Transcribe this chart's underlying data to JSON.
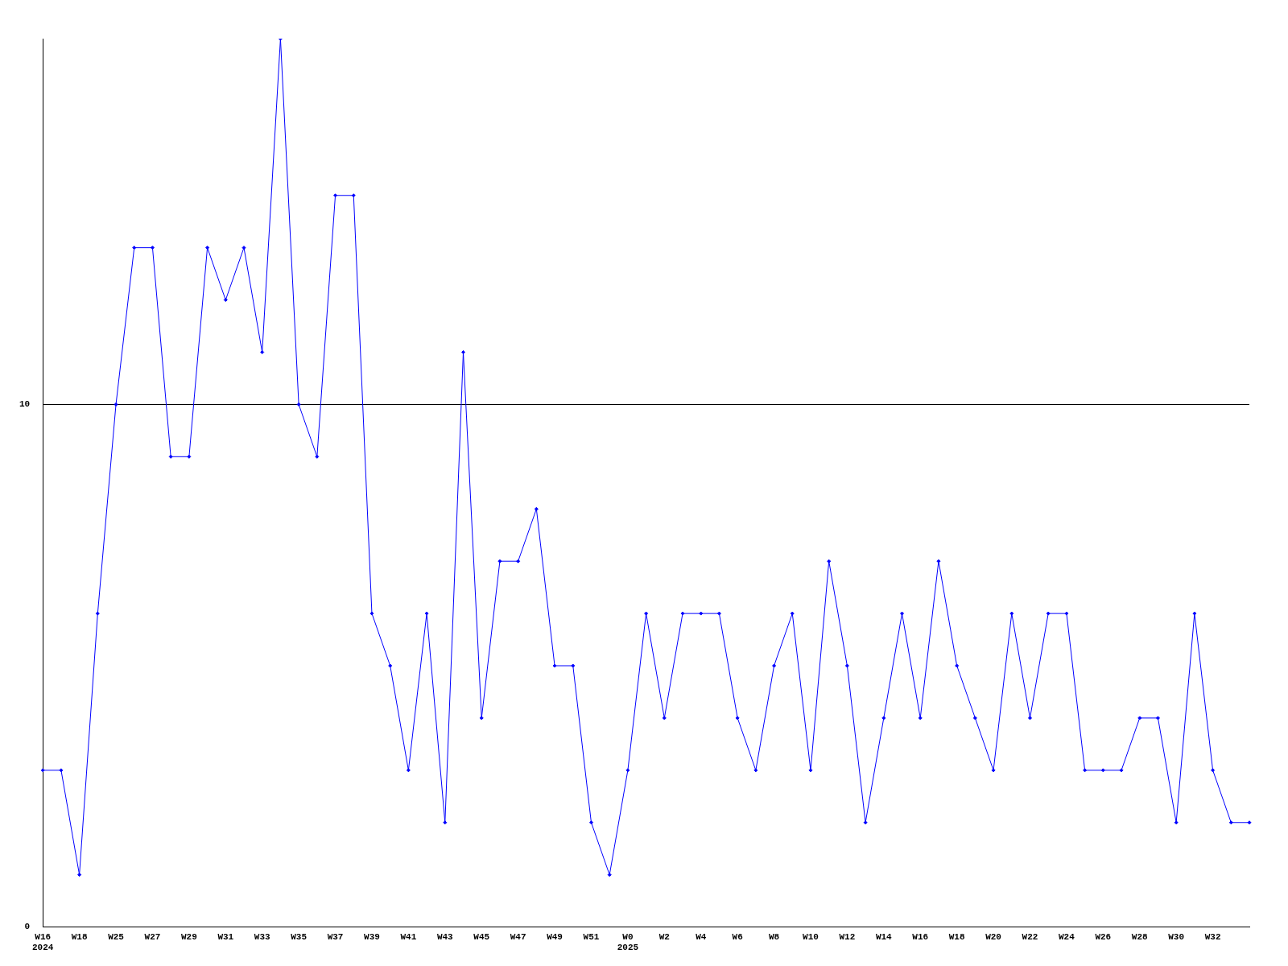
{
  "chart_data": {
    "type": "line",
    "categories": [
      "W16\n2024",
      null,
      "W18",
      null,
      "W25",
      null,
      "W27",
      null,
      "W29",
      null,
      "W31",
      null,
      "W33",
      null,
      "W35",
      null,
      "W37",
      null,
      "W39",
      null,
      "W41",
      null,
      "W43",
      null,
      "W45",
      null,
      "W47",
      null,
      "W49",
      null,
      "W51",
      null,
      "W0\n2025",
      null,
      "W2",
      null,
      "W4",
      null,
      "W6",
      null,
      "W8",
      null,
      "W10",
      null,
      "W12",
      null,
      "W14",
      null,
      "W16",
      null,
      "W18",
      null,
      "W20",
      null,
      "W22",
      null,
      "W24",
      null,
      "W26",
      null,
      "W28",
      null,
      "W30",
      null,
      "W32",
      null,
      null
    ],
    "series": [
      {
        "color": "#0000ff",
        "values": [
          3,
          3,
          1,
          6,
          10,
          13,
          13,
          9,
          9,
          13,
          12,
          13,
          11,
          17,
          10,
          9,
          14,
          14,
          6,
          5,
          3,
          6,
          2,
          11,
          4,
          7,
          7,
          8,
          5,
          5,
          2,
          1,
          3,
          6,
          4,
          6,
          6,
          6,
          4,
          3,
          5,
          6,
          3,
          7,
          5,
          2,
          4,
          6,
          4,
          7,
          5,
          4,
          3,
          6,
          4,
          6,
          6,
          3,
          3,
          3,
          4,
          4,
          2,
          6,
          3,
          2,
          2
        ]
      }
    ],
    "ylim": [
      0,
      17
    ],
    "yticks": [
      0,
      10
    ],
    "grid": "y",
    "legend": false,
    "marker": "diamond",
    "line_style": "solid"
  }
}
